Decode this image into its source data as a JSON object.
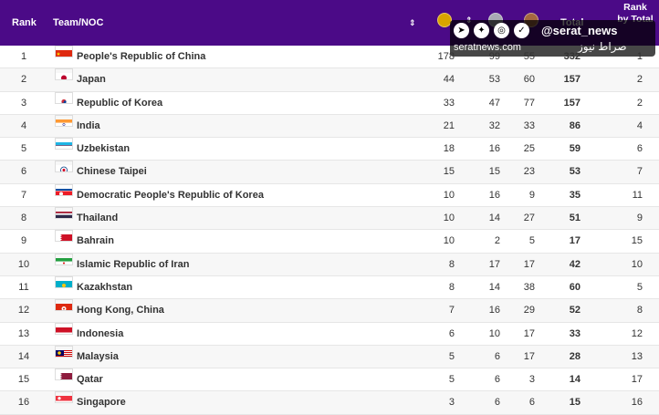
{
  "header": {
    "rank": "Rank",
    "team": "Team/NOC",
    "sort_glyph": "⇕",
    "total": "Total",
    "rank_by_total": "Rank by Total"
  },
  "overlay": {
    "handle": "@serat_news",
    "site": "seratnews.com",
    "brand": "صراط نیوز",
    "icons": [
      "telegram-icon",
      "twitter-icon",
      "instagram-icon",
      "bale-icon"
    ]
  },
  "rows": [
    {
      "rank": "1",
      "name": "People's Republic of China",
      "flag": "china",
      "gold": "178",
      "silver": "99",
      "bronze": "55",
      "total": "332",
      "rbt": "1"
    },
    {
      "rank": "2",
      "name": "Japan",
      "flag": "japan",
      "gold": "44",
      "silver": "53",
      "bronze": "60",
      "total": "157",
      "rbt": "2"
    },
    {
      "rank": "3",
      "name": "Republic of Korea",
      "flag": "korea",
      "gold": "33",
      "silver": "47",
      "bronze": "77",
      "total": "157",
      "rbt": "2"
    },
    {
      "rank": "4",
      "name": "India",
      "flag": "india",
      "gold": "21",
      "silver": "32",
      "bronze": "33",
      "total": "86",
      "rbt": "4"
    },
    {
      "rank": "5",
      "name": "Uzbekistan",
      "flag": "uzbekistan",
      "gold": "18",
      "silver": "16",
      "bronze": "25",
      "total": "59",
      "rbt": "6"
    },
    {
      "rank": "6",
      "name": "Chinese Taipei",
      "flag": "taipei",
      "gold": "15",
      "silver": "15",
      "bronze": "23",
      "total": "53",
      "rbt": "7"
    },
    {
      "rank": "7",
      "name": "Democratic People's Republic of Korea",
      "flag": "dprk",
      "gold": "10",
      "silver": "16",
      "bronze": "9",
      "total": "35",
      "rbt": "11"
    },
    {
      "rank": "8",
      "name": "Thailand",
      "flag": "thailand",
      "gold": "10",
      "silver": "14",
      "bronze": "27",
      "total": "51",
      "rbt": "9"
    },
    {
      "rank": "9",
      "name": "Bahrain",
      "flag": "bahrain",
      "gold": "10",
      "silver": "2",
      "bronze": "5",
      "total": "17",
      "rbt": "15"
    },
    {
      "rank": "10",
      "name": "Islamic Republic of Iran",
      "flag": "iran",
      "gold": "8",
      "silver": "17",
      "bronze": "17",
      "total": "42",
      "rbt": "10"
    },
    {
      "rank": "11",
      "name": "Kazakhstan",
      "flag": "kazakhstan",
      "gold": "8",
      "silver": "14",
      "bronze": "38",
      "total": "60",
      "rbt": "5"
    },
    {
      "rank": "12",
      "name": "Hong Kong, China",
      "flag": "hongkong",
      "gold": "7",
      "silver": "16",
      "bronze": "29",
      "total": "52",
      "rbt": "8"
    },
    {
      "rank": "13",
      "name": "Indonesia",
      "flag": "indonesia",
      "gold": "6",
      "silver": "10",
      "bronze": "17",
      "total": "33",
      "rbt": "12"
    },
    {
      "rank": "14",
      "name": "Malaysia",
      "flag": "malaysia",
      "gold": "5",
      "silver": "6",
      "bronze": "17",
      "total": "28",
      "rbt": "13"
    },
    {
      "rank": "15",
      "name": "Qatar",
      "flag": "qatar",
      "gold": "5",
      "silver": "6",
      "bronze": "3",
      "total": "14",
      "rbt": "17"
    },
    {
      "rank": "16",
      "name": "Singapore",
      "flag": "singapore",
      "gold": "3",
      "silver": "6",
      "bronze": "6",
      "total": "15",
      "rbt": "16"
    }
  ],
  "colors": {
    "header_bg": "#4b0a87",
    "gold": "#d9a400",
    "silver": "#a9a9b4",
    "bronze": "#a5673f"
  }
}
